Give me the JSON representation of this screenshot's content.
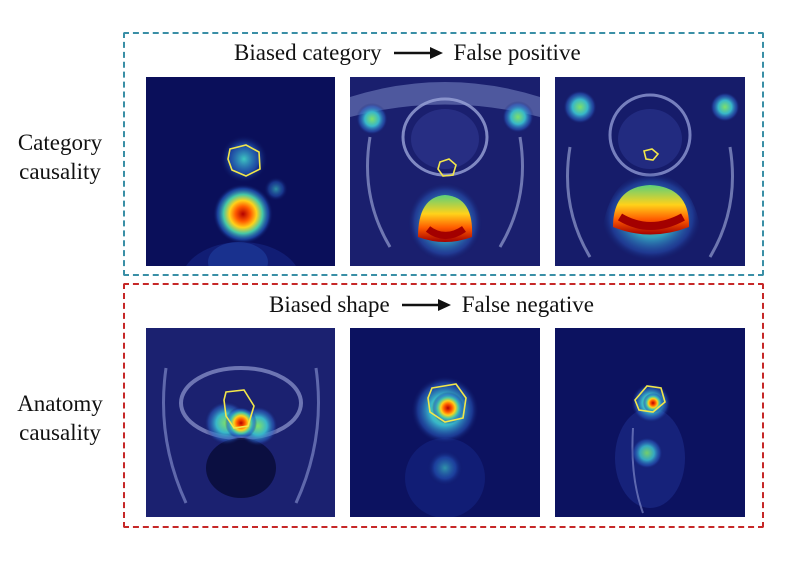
{
  "top_row": {
    "caption_left": "Biased category",
    "caption_right": "False positive",
    "row_label_line1": "Category",
    "row_label_line2": "causality",
    "border_color": "#3a8fa6"
  },
  "bottom_row": {
    "caption_left": "Biased shape",
    "caption_right": "False negative",
    "row_label_line1": "Anatomy",
    "row_label_line2": "causality",
    "border_color": "#c62828"
  },
  "icons": [
    "right-arrow-icon"
  ],
  "colors": {
    "heat_low": "#0b0f57",
    "heat_mid": "#2fb5c8",
    "heat_high": "#c81a08",
    "contour": "#f2e64a"
  }
}
